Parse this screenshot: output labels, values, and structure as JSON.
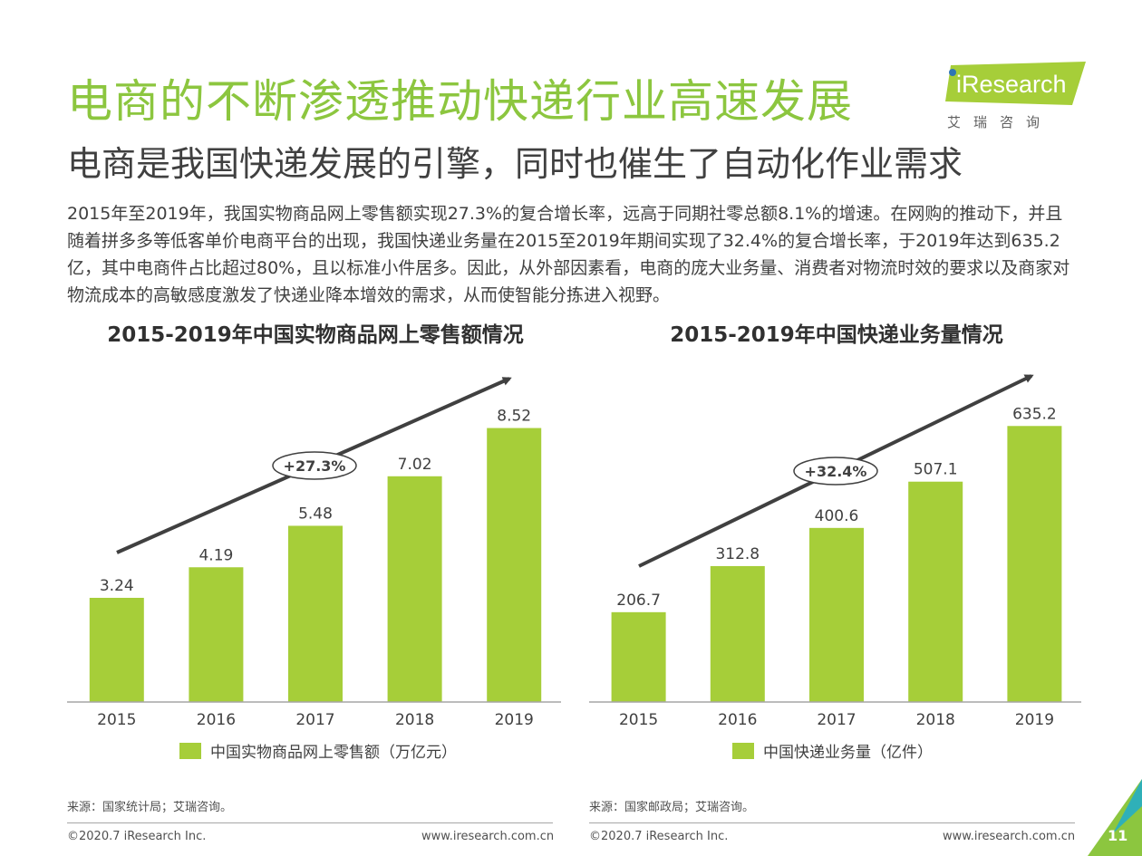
{
  "header": {
    "title": "电商的不断渗透推动快递行业高速发展",
    "subtitle": "电商是我国快递发展的引擎，同时也催生了自动化作业需求",
    "paragraph": "2015年至2019年，我国实物商品网上零售额实现27.3%的复合增长率，远高于同期社零总额8.1%的增速。在网购的推动下，并且随着拼多多等低客单价电商平台的出现，我国快递业务量在2015至2019年期间实现了32.4%的复合增长率，于2019年达到635.2亿，其中电商件占比超过80%，且以标准小件居多。因此，从外部因素看，电商的庞大业务量、消费者对物流时效的要求以及商家对物流成本的高敏感度激发了快递业降本增效的需求，从而使智能分拣进入视野。"
  },
  "logo": {
    "brand": "iResearch",
    "sub": "艾瑞咨询",
    "accent": "#a6ce39",
    "icon": "iresearch-logo-icon"
  },
  "colors": {
    "bar": "#a6ce39",
    "title": "#8cc63f",
    "arrow": "#404040",
    "corner": "#8cc63f"
  },
  "chart_data": [
    {
      "type": "bar",
      "title": "2015-2019年中国实物商品网上零售额情况",
      "categories": [
        "2015",
        "2016",
        "2017",
        "2018",
        "2019"
      ],
      "series": [
        {
          "name": "中国实物商品网上零售额（万亿元）",
          "values": [
            3.24,
            4.19,
            5.48,
            7.02,
            8.52
          ]
        }
      ],
      "value_labels": [
        "3.24",
        "4.19",
        "5.48",
        "7.02",
        "8.52"
      ],
      "ylim": [
        0,
        10
      ],
      "grid": false,
      "legend": "bottom",
      "annotation": "+27.3%"
    },
    {
      "type": "bar",
      "title": "2015-2019年中国快递业务量情况",
      "categories": [
        "2015",
        "2016",
        "2017",
        "2018",
        "2019"
      ],
      "series": [
        {
          "name": "中国快递业务量（亿件）",
          "values": [
            206.7,
            312.8,
            400.6,
            507.1,
            635.2
          ]
        }
      ],
      "value_labels": [
        "206.7",
        "312.8",
        "400.6",
        "507.1",
        "635.2"
      ],
      "ylim": [
        0,
        740
      ],
      "grid": false,
      "legend": "bottom",
      "annotation": "+32.4%"
    }
  ],
  "footer": {
    "source_left": "来源：国家统计局；艾瑞咨询。",
    "source_right": "来源：国家邮政局；艾瑞咨询。",
    "copyright": "©2020.7 iResearch Inc.",
    "url": "www.iresearch.com.cn",
    "page": "11"
  }
}
